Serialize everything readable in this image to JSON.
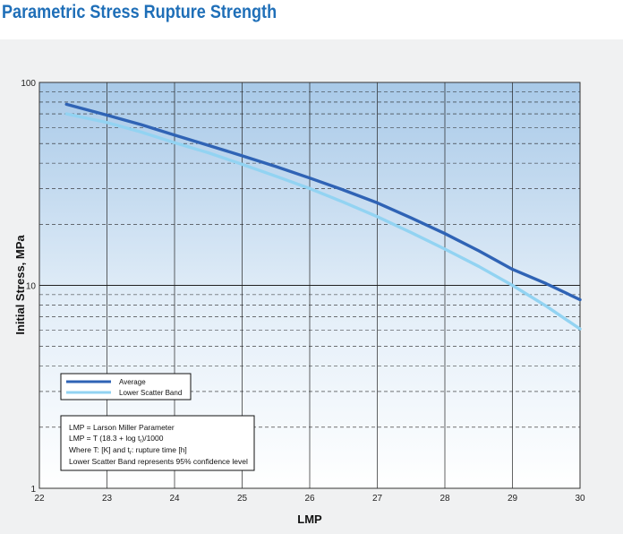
{
  "title": "Parametric Stress Rupture Strength",
  "chart_data": {
    "type": "line",
    "title": "Parametric Stress Rupture Strength",
    "xlabel": "LMP",
    "ylabel": "Initial Stress, MPa",
    "xlim": [
      22,
      30
    ],
    "ylim": [
      1,
      100
    ],
    "yscale": "log",
    "x_ticks": [
      "22",
      "23",
      "24",
      "25",
      "26",
      "27",
      "28",
      "29",
      "30"
    ],
    "y_ticks": [
      "1",
      "10",
      "100"
    ],
    "grid": true,
    "legend_position": "lower-left",
    "series": [
      {
        "name": "Average",
        "color": "#2f63b5",
        "x": [
          22.4,
          23.0,
          23.5,
          24.0,
          24.5,
          25.0,
          25.5,
          26.0,
          26.5,
          27.0,
          27.5,
          28.0,
          28.5,
          29.0,
          29.5,
          30.0
        ],
        "y": [
          78,
          69,
          62,
          55,
          49,
          43.5,
          38.5,
          33.8,
          29.5,
          25.5,
          21.5,
          18.0,
          14.8,
          12.0,
          10.2,
          8.5
        ]
      },
      {
        "name": "Lower Scatter Band",
        "color": "#92d3f2",
        "x": [
          22.4,
          23.0,
          23.5,
          24.0,
          24.5,
          25.0,
          25.5,
          26.0,
          26.5,
          27.0,
          27.5,
          28.0,
          28.5,
          29.0,
          29.5,
          30.0
        ],
        "y": [
          70,
          63.5,
          57,
          50.5,
          45,
          39.5,
          34.5,
          30.0,
          25.7,
          21.8,
          18.2,
          15.1,
          12.4,
          10.0,
          7.9,
          6.1
        ]
      }
    ],
    "notes": [
      "LMP = Larson Miller Parameter",
      "LMP = T (18.3 + log t",
      ")/1000",
      "Where T: [K] and t",
      ": rupture time [h]",
      "Lower Scatter Band represents 95% confidence level"
    ],
    "note_subscripts": [
      "r",
      "r"
    ]
  }
}
